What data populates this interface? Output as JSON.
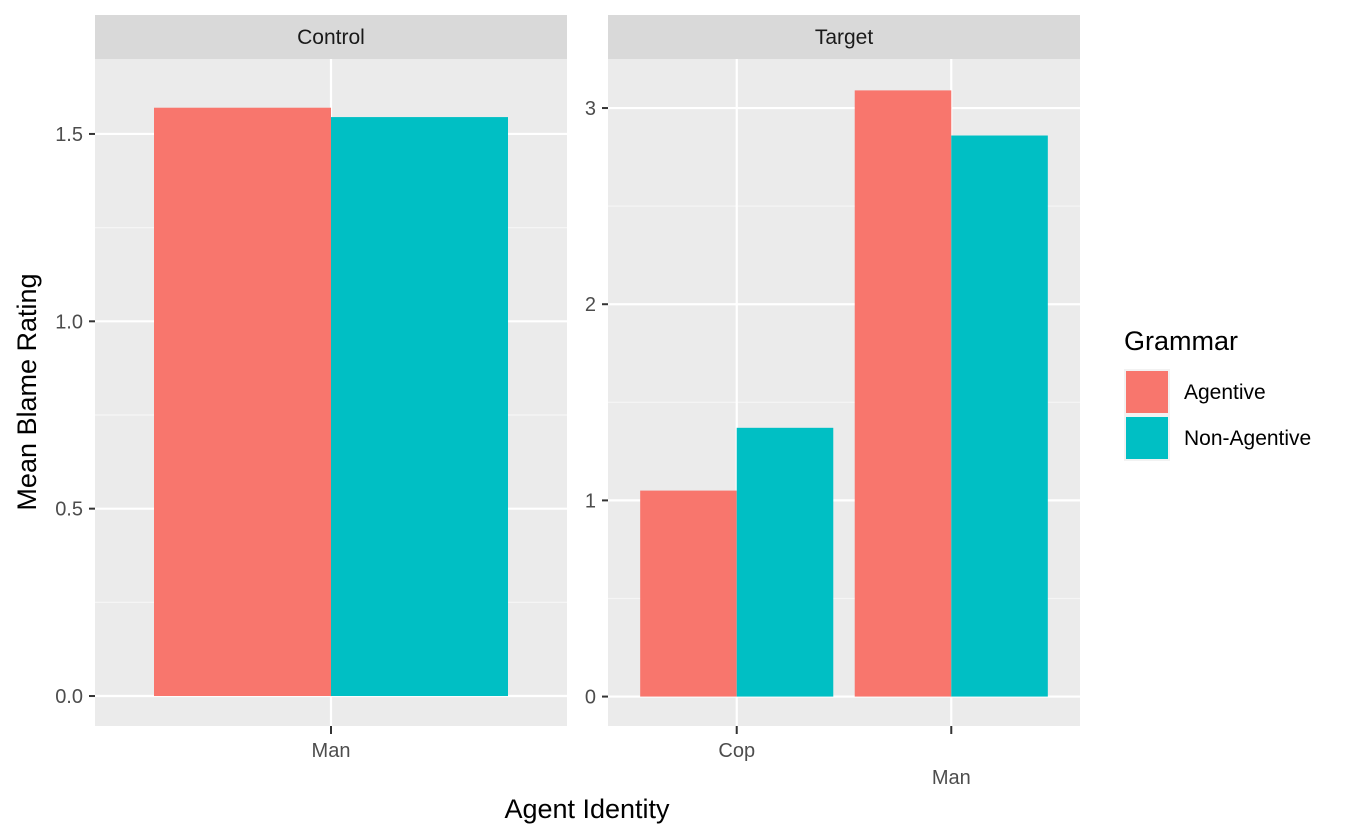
{
  "chart_data": {
    "type": "bar",
    "xlabel": "Agent Identity",
    "ylabel": "Mean Blame Rating",
    "legend": {
      "title": "Grammar",
      "position": "right",
      "entries": [
        {
          "name": "Agentive",
          "color": "#F8766D"
        },
        {
          "name": "Non-Agentive",
          "color": "#00BFC4"
        }
      ]
    },
    "grid": true,
    "panels": [
      {
        "title": "Control",
        "categories": [
          "Man"
        ],
        "ylim": [
          -0.08,
          1.7
        ],
        "yticks": [
          0.0,
          0.5,
          1.0,
          1.5
        ],
        "ytick_labels": [
          "0.0",
          "0.5",
          "1.0",
          "1.5"
        ],
        "series": [
          {
            "name": "Agentive",
            "values": [
              1.57
            ]
          },
          {
            "name": "Non-Agentive",
            "values": [
              1.545
            ]
          }
        ]
      },
      {
        "title": "Target",
        "categories": [
          "Cop",
          "Man"
        ],
        "ylim": [
          -0.15,
          3.25
        ],
        "yticks": [
          0,
          1,
          2,
          3
        ],
        "ytick_labels": [
          "0",
          "1",
          "2",
          "3"
        ],
        "series": [
          {
            "name": "Agentive",
            "values": [
              1.05,
              3.09
            ]
          },
          {
            "name": "Non-Agentive",
            "values": [
              1.37,
              2.86
            ]
          }
        ]
      }
    ]
  }
}
